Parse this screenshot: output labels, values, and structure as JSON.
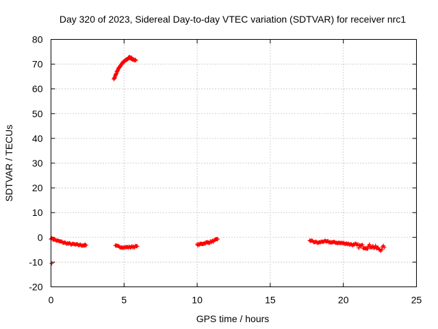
{
  "chart_data": {
    "type": "scatter",
    "title": "Day 320 of 2023, Sidereal Day-to-day VTEC variation (SDTVAR) for receiver nrc1",
    "xlabel": "GPS time / hours",
    "ylabel": "SDTVAR / TECUs",
    "xlim": [
      0,
      25
    ],
    "ylim": [
      -20,
      80
    ],
    "xticks": [
      0,
      5,
      10,
      15,
      20,
      25
    ],
    "yticks": [
      -20,
      -10,
      0,
      10,
      20,
      30,
      40,
      50,
      60,
      70,
      80
    ],
    "grid": true,
    "legend": "none",
    "marker": "plus",
    "color": "#ff0000",
    "series": [
      {
        "name": "SDTVAR",
        "segments": [
          {
            "x": [
              0.0,
              0.25,
              0.5,
              0.75,
              1.0,
              1.25,
              1.5,
              1.75,
              2.0,
              2.25,
              2.4
            ],
            "y": [
              -0.4,
              -1.0,
              -1.5,
              -1.9,
              -2.3,
              -2.6,
              -2.8,
              -3.0,
              -3.1,
              -3.2,
              -3.2
            ]
          },
          {
            "x": [
              0.05
            ],
            "y": [
              -10.5
            ]
          },
          {
            "x": [
              4.3,
              4.4,
              4.5,
              4.6,
              4.7,
              4.8,
              4.9,
              5.0,
              5.1,
              5.2,
              5.3,
              5.4,
              5.5,
              5.6,
              5.8
            ],
            "y": [
              63.8,
              65.3,
              66.8,
              68.0,
              69.0,
              69.8,
              70.5,
              71.0,
              71.5,
              72.0,
              72.4,
              72.8,
              72.4,
              71.9,
              71.5
            ]
          },
          {
            "x": [
              4.4,
              4.7,
              5.0,
              5.3,
              5.6,
              5.9
            ],
            "y": [
              -3.5,
              -3.8,
              -4.0,
              -4.0,
              -3.8,
              -3.6
            ]
          },
          {
            "x": [
              10.0,
              10.2,
              10.4,
              10.6,
              10.8,
              11.0,
              11.2,
              11.4
            ],
            "y": [
              -3.0,
              -2.8,
              -2.5,
              -2.2,
              -2.0,
              -1.7,
              -1.3,
              -0.7
            ]
          },
          {
            "x": [
              17.7,
              18.0,
              18.3,
              18.6,
              18.9,
              19.2,
              19.5,
              19.8,
              20.1,
              20.4,
              20.7,
              21.0,
              21.3,
              21.6,
              21.9,
              22.2,
              22.5,
              22.8
            ],
            "y": [
              -1.2,
              -1.8,
              -2.2,
              -1.6,
              -1.8,
              -2.0,
              -2.1,
              -2.3,
              -2.4,
              -2.7,
              -3.0,
              -3.5,
              -3.6,
              -3.9,
              -3.4,
              -4.2,
              -4.9,
              -4.0
            ]
          }
        ]
      }
    ]
  }
}
